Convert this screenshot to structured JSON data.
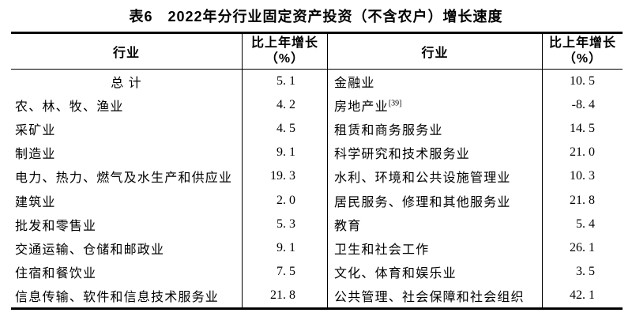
{
  "colors": {
    "background": "#ffffff",
    "border": "#000000",
    "text": "#000000"
  },
  "title": "表6　2022年分行业固定资产投资（不含农户）增长速度",
  "table": {
    "headers": {
      "industry": "行业",
      "growth_line1": "比上年增长",
      "growth_line2": "（%）"
    },
    "left_rows": [
      {
        "name": "总 计",
        "value": "5. 1"
      },
      {
        "name": "农、林、牧、渔业",
        "value": "4. 2"
      },
      {
        "name": "采矿业",
        "value": "4. 5"
      },
      {
        "name": "制造业",
        "value": "9. 1"
      },
      {
        "name": "电力、热力、燃气及水生产和供应业",
        "value": "19. 3"
      },
      {
        "name": "建筑业",
        "value": "2. 0"
      },
      {
        "name": "批发和零售业",
        "value": "5. 3"
      },
      {
        "name": "交通运输、仓储和邮政业",
        "value": "9. 1"
      },
      {
        "name": "住宿和餐饮业",
        "value": "7. 5"
      },
      {
        "name": "信息传输、软件和信息技术服务业",
        "value": "21. 8"
      }
    ],
    "right_rows": [
      {
        "name": "金融业",
        "note": "",
        "value": "10. 5"
      },
      {
        "name": "房地产业",
        "note": "[39]",
        "value": "-8. 4"
      },
      {
        "name": "租赁和商务服务业",
        "note": "",
        "value": "14. 5"
      },
      {
        "name": "科学研究和技术服务业",
        "note": "",
        "value": "21. 0"
      },
      {
        "name": "水利、环境和公共设施管理业",
        "note": "",
        "value": "10. 3"
      },
      {
        "name": "居民服务、修理和其他服务业",
        "note": "",
        "value": "21. 8"
      },
      {
        "name": "教育",
        "note": "",
        "value": "5. 4"
      },
      {
        "name": "卫生和社会工作",
        "note": "",
        "value": "26. 1"
      },
      {
        "name": "文化、体育和娱乐业",
        "note": "",
        "value": "3. 5"
      },
      {
        "name": "公共管理、社会保障和社会组织",
        "note": "",
        "value": "42. 1"
      }
    ]
  }
}
